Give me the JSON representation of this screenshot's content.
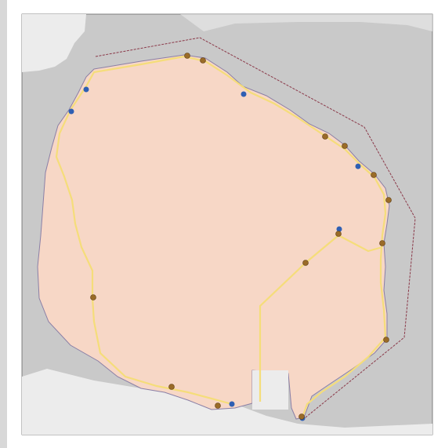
{
  "map": {
    "background_color": "#c9c9c9",
    "land_color": "#ececec",
    "island_fill": "#f7d7c6",
    "island_edge": "#8a7fa6",
    "boundary_color": "#8b3a4a",
    "road_color": "#f5dd7a",
    "marker_blue": "#2f5fb3",
    "marker_brown": "#9a6b28",
    "marker_brown_stroke": "#5a3a10"
  },
  "axes": {
    "top_labels": [
      "",
      "",
      "",
      "",
      "",
      "",
      "",
      "",
      "",
      "",
      "",
      "",
      ""
    ],
    "bottom_labels": [
      "",
      "",
      "",
      "",
      "",
      "",
      "",
      "",
      "",
      "",
      "",
      "",
      ""
    ],
    "left_labels": [
      "",
      "",
      "",
      "",
      "",
      "",
      "",
      "",
      "",
      "",
      "",
      ""
    ],
    "right_labels": [
      "",
      "",
      "",
      "",
      "",
      "",
      "",
      "",
      "",
      "",
      "",
      ""
    ]
  },
  "markers": {
    "blue_count": 6,
    "brown_count": 14
  }
}
